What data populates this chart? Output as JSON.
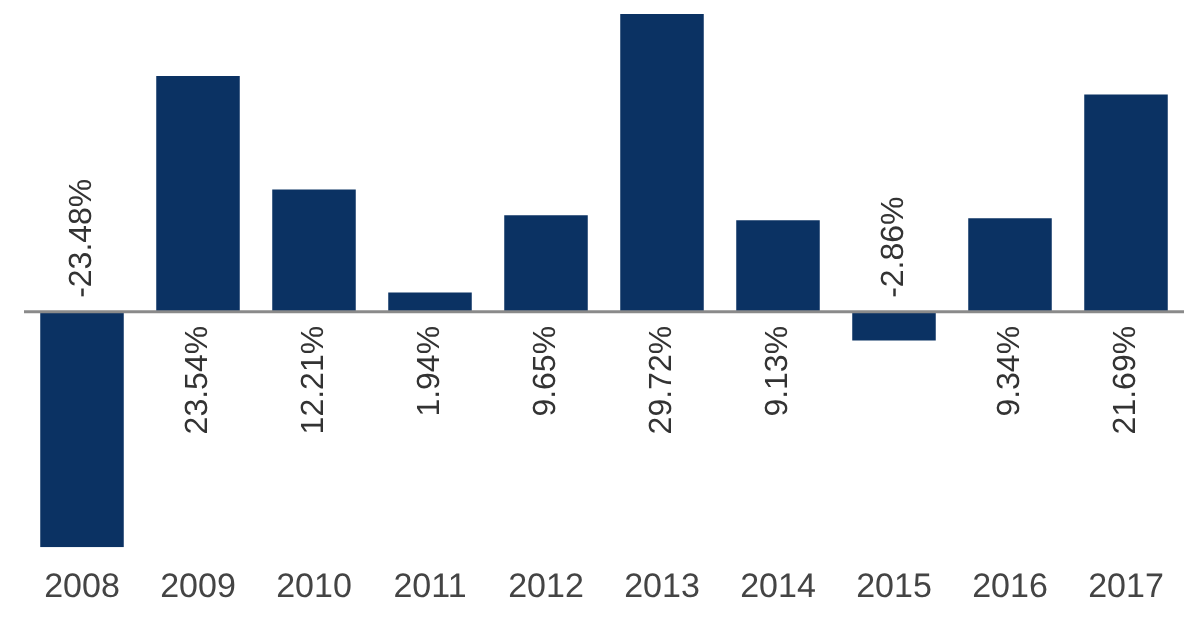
{
  "chart_data": {
    "type": "bar",
    "categories": [
      "2008",
      "2009",
      "2010",
      "2011",
      "2012",
      "2013",
      "2014",
      "2015",
      "2016",
      "2017"
    ],
    "values": [
      -23.48,
      23.54,
      12.21,
      1.94,
      9.65,
      29.72,
      9.13,
      -2.86,
      9.34,
      21.69
    ],
    "value_labels": [
      "-23.48%",
      "23.54%",
      "12.21%",
      "1.94%",
      "9.65%",
      "29.72%",
      "9.13%",
      "-2.86%",
      "9.34%",
      "21.69%"
    ],
    "color": "#0b3263",
    "legend": false,
    "grid": false
  }
}
